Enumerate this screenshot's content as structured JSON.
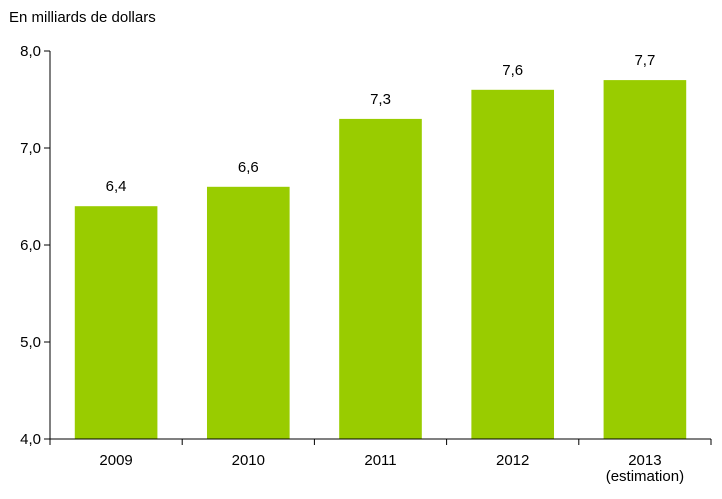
{
  "chart_data": {
    "type": "bar",
    "ylabel": "En milliards de dollars",
    "categories": [
      "2009",
      "2010",
      "2011",
      "2012",
      "2013\n(estimation)"
    ],
    "values": [
      6.4,
      6.6,
      7.3,
      7.6,
      7.7
    ],
    "value_labels": [
      "6,4",
      "6,6",
      "7,3",
      "7,6",
      "7,7"
    ],
    "ylim": [
      4.0,
      8.0
    ],
    "yticks": [
      4.0,
      5.0,
      6.0,
      7.0,
      8.0
    ],
    "ytick_labels": [
      "4,0",
      "5,0",
      "6,0",
      "7,0",
      "8,0"
    ],
    "grid": false,
    "legend": "none",
    "bar_color": "#99cc00"
  }
}
